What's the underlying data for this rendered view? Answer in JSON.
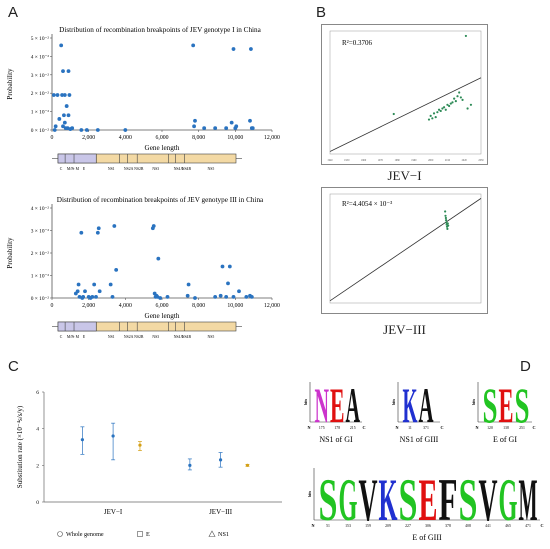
{
  "panels": {
    "A": "A",
    "B": "B",
    "C": "C",
    "D": "D"
  },
  "genome_segments": [
    "C",
    "M/Pr M",
    "E",
    "NS1",
    "NS2A NS2B",
    "NS3",
    "NS4A",
    "NS4B",
    "NS5"
  ],
  "chart_data": [
    {
      "id": "A1",
      "type": "scatter",
      "title": "Distribution of recombination breakpoints of JEV genotype I in China",
      "xlabel": "Gene length",
      "ylabel": "Probability",
      "xlim": [
        0,
        12000
      ],
      "ylim": [
        0,
        0.05
      ],
      "xticks": [
        0,
        2000,
        4000,
        6000,
        8000,
        10000,
        12000
      ],
      "xtick_labels": [
        "0",
        "2,000",
        "4,000",
        "6,000",
        "8,000",
        "10,000",
        "12,000"
      ],
      "yticks": [
        0,
        0.01,
        0.02,
        0.03,
        0.04,
        0.05
      ],
      "ytick_labels": [
        "0 × 10⁻²",
        "1 × 10⁻²",
        "2 × 10⁻²",
        "3 × 10⁻²",
        "4 × 10⁻²",
        "5 × 10⁻²"
      ],
      "color": "#2a73c0",
      "points": [
        [
          100,
          0.019
        ],
        [
          150,
          0
        ],
        [
          200,
          0.002
        ],
        [
          300,
          0.019
        ],
        [
          400,
          0.006
        ],
        [
          500,
          0.046
        ],
        [
          550,
          0.019
        ],
        [
          600,
          0.032
        ],
        [
          600,
          0.002
        ],
        [
          650,
          0.008
        ],
        [
          700,
          0.019
        ],
        [
          700,
          0.004
        ],
        [
          750,
          0.001
        ],
        [
          800,
          0.013
        ],
        [
          850,
          0.001
        ],
        [
          900,
          0.032
        ],
        [
          900,
          0.008
        ],
        [
          950,
          0.019
        ],
        [
          1000,
          0.0005
        ],
        [
          1100,
          0.001
        ],
        [
          1600,
          0
        ],
        [
          1900,
          0
        ],
        [
          2500,
          0
        ],
        [
          4000,
          0
        ],
        [
          7700,
          0.046
        ],
        [
          7750,
          0.002
        ],
        [
          7800,
          0.005
        ],
        [
          8300,
          0.001
        ],
        [
          8900,
          0.001
        ],
        [
          9500,
          0.001
        ],
        [
          9800,
          0.004
        ],
        [
          9900,
          0.044
        ],
        [
          10000,
          0.001
        ],
        [
          10050,
          0.002
        ],
        [
          10800,
          0.005
        ],
        [
          10850,
          0.044
        ],
        [
          10900,
          0.001
        ],
        [
          10950,
          0.001
        ]
      ]
    },
    {
      "id": "A2",
      "type": "scatter",
      "title": "Distribution of recombination breakpoints of JEV genotype III in China",
      "xlabel": "Gene length",
      "ylabel": "Probability",
      "xlim": [
        0,
        12000
      ],
      "ylim": [
        0,
        0.04
      ],
      "xticks": [
        0,
        2000,
        4000,
        6000,
        8000,
        10000,
        12000
      ],
      "xtick_labels": [
        "0",
        "2,000",
        "4,000",
        "6,000",
        "8,000",
        "10,000",
        "12,000"
      ],
      "yticks": [
        0,
        0.01,
        0.02,
        0.03,
        0.04
      ],
      "ytick_labels": [
        "0 × 10⁻²",
        "1 × 10⁻²",
        "2 × 10⁻²",
        "3 × 10⁻²",
        "4 × 10⁻²"
      ],
      "color": "#2a73c0",
      "points": [
        [
          1300,
          0.002
        ],
        [
          1400,
          0.003
        ],
        [
          1450,
          0.006
        ],
        [
          1500,
          0.0005
        ],
        [
          1600,
          0.029
        ],
        [
          1650,
          0
        ],
        [
          1700,
          0.0005
        ],
        [
          1800,
          0.003
        ],
        [
          2000,
          0.0005
        ],
        [
          2100,
          0
        ],
        [
          2200,
          0.0005
        ],
        [
          2300,
          0.006
        ],
        [
          2400,
          0.0005
        ],
        [
          2500,
          0.029
        ],
        [
          2550,
          0.031
        ],
        [
          2600,
          0.003
        ],
        [
          3200,
          0.006
        ],
        [
          3300,
          0.0005
        ],
        [
          3400,
          0.032
        ],
        [
          3500,
          0.0125
        ],
        [
          5500,
          0.031
        ],
        [
          5550,
          0.032
        ],
        [
          5600,
          0.002
        ],
        [
          5650,
          0.0005
        ],
        [
          5700,
          0.001
        ],
        [
          5750,
          0.0005
        ],
        [
          5800,
          0.0175
        ],
        [
          5900,
          0
        ],
        [
          6300,
          0.0005
        ],
        [
          7400,
          0.001
        ],
        [
          7450,
          0.006
        ],
        [
          7800,
          0
        ],
        [
          8900,
          0.0005
        ],
        [
          9200,
          0.001
        ],
        [
          9300,
          0.014
        ],
        [
          9500,
          0.0005
        ],
        [
          9600,
          0.0065
        ],
        [
          9700,
          0.014
        ],
        [
          9900,
          0.0005
        ],
        [
          10200,
          0.003
        ],
        [
          10600,
          0.0005
        ],
        [
          10800,
          0.001
        ],
        [
          10900,
          0.0005
        ]
      ]
    },
    {
      "id": "B1",
      "type": "scatter",
      "annotation": "R²=0.3706",
      "caption": "JEV−I",
      "xlim": [
        1940,
        2030
      ],
      "ylim": [
        0,
        1
      ],
      "xtick_labels": [
        "1940",
        "1950",
        "1960",
        "1970",
        "1980",
        "1990",
        "2000",
        "2010",
        "2020",
        "2030"
      ],
      "regression_line": [
        [
          1940,
          0.02
        ],
        [
          2030,
          0.62
        ]
      ],
      "color": "#2e8b57",
      "points": [
        [
          1978,
          0.325
        ],
        [
          1999,
          0.28
        ],
        [
          2000,
          0.31
        ],
        [
          2001,
          0.29
        ],
        [
          2002,
          0.33
        ],
        [
          2003,
          0.3
        ],
        [
          2004,
          0.34
        ],
        [
          2005,
          0.36
        ],
        [
          2006,
          0.35
        ],
        [
          2007,
          0.37
        ],
        [
          2008,
          0.38
        ],
        [
          2009,
          0.36
        ],
        [
          2010,
          0.4
        ],
        [
          2011,
          0.39
        ],
        [
          2012,
          0.41
        ],
        [
          2013,
          0.42
        ],
        [
          2014,
          0.45
        ],
        [
          2015,
          0.43
        ],
        [
          2016,
          0.47
        ],
        [
          2017,
          0.5
        ],
        [
          2018,
          0.46
        ],
        [
          2019,
          0.44
        ],
        [
          2021,
          0.96
        ],
        [
          2022,
          0.37
        ],
        [
          2024,
          0.4
        ]
      ]
    },
    {
      "id": "B2",
      "type": "scatter",
      "annotation": "R²=4.4054 × 10⁻³",
      "caption": "JEV−III",
      "xlim": [
        1950,
        2030
      ],
      "ylim": [
        0,
        1
      ],
      "regression_line": [
        [
          1950,
          0.02
        ],
        [
          2030,
          0.96
        ]
      ],
      "color": "#2e8b57",
      "points": [
        [
          2011,
          0.84
        ],
        [
          2011.2,
          0.8
        ],
        [
          2011.4,
          0.78
        ],
        [
          2011.5,
          0.76
        ],
        [
          2011.7,
          0.74
        ],
        [
          2011.8,
          0.72
        ],
        [
          2012,
          0.7
        ],
        [
          2012.2,
          0.68
        ],
        [
          2012.4,
          0.73
        ],
        [
          2012.6,
          0.71
        ]
      ]
    },
    {
      "id": "C",
      "type": "errorbar",
      "ylabel": "Substitution rate (×10⁻⁴s/s/y)",
      "ylim": [
        0,
        6
      ],
      "yticks": [
        0,
        2,
        4,
        6
      ],
      "categories": [
        "JEV−I",
        "JEV−III"
      ],
      "series": [
        {
          "name": "Whole genome",
          "marker": "circle",
          "color": "#2a73c0",
          "values": [
            {
              "group": "JEV−I",
              "x": 0.8,
              "mean": 3.4,
              "low": 2.6,
              "high": 4.1
            },
            {
              "group": "JEV−III",
              "x": 2.2,
              "mean": 2.0,
              "low": 1.75,
              "high": 2.35
            }
          ]
        },
        {
          "name": "E",
          "marker": "square",
          "color": "#2a73c0",
          "values": [
            {
              "group": "JEV−I",
              "x": 1.2,
              "mean": 3.6,
              "low": 2.3,
              "high": 4.3
            },
            {
              "group": "JEV−III",
              "x": 2.6,
              "mean": 2.3,
              "low": 1.9,
              "high": 2.7
            }
          ]
        },
        {
          "name": "NS1",
          "marker": "triangle",
          "color": "#d4a017",
          "values": [
            {
              "group": "JEV−I",
              "x": 1.55,
              "mean": 3.1,
              "low": 2.8,
              "high": 3.3
            },
            {
              "group": "JEV−III",
              "x": 2.95,
              "mean": 2.0,
              "low": 1.95,
              "high": 2.05
            }
          ]
        }
      ]
    }
  ],
  "B": {
    "caption1": "JEV−I",
    "caption2": "JEV−III",
    "r2_1": "R²=0.3706",
    "r2_2": "R²=4.4054 × 10⁻³"
  },
  "logos": [
    {
      "label": "NS1 of GI",
      "letters": [
        "N",
        "E",
        "A"
      ],
      "ticks": [
        "175",
        "178",
        "215"
      ]
    },
    {
      "label": "NS1 of GIII",
      "letters": [
        "K",
        "A"
      ],
      "ticks": [
        "11",
        "371"
      ]
    },
    {
      "label": "E of GI",
      "letters": [
        "S",
        "E",
        "S"
      ],
      "ticks": [
        "120",
        "138",
        "251"
      ]
    },
    {
      "label": "E of GIII",
      "letters": [
        "S",
        "G",
        "V",
        "K",
        "S",
        "E",
        "F",
        "S",
        "V",
        "G",
        "M"
      ],
      "ticks": [
        "51",
        "153",
        "159",
        "209",
        "227",
        "306",
        "378",
        "408",
        "441",
        "465",
        "471"
      ]
    }
  ],
  "logo_axis": {
    "bits": "bits",
    "n": "N",
    "c": "C"
  },
  "logo_colors": {
    "S": "#22c422",
    "G": "#22c422",
    "N": "#cc33cc",
    "Q": "#cc33cc",
    "K": "#2030d0",
    "R": "#2030d0",
    "E": "#e01010",
    "D": "#e01010",
    "A": "#111111",
    "V": "#111111",
    "F": "#111111",
    "M": "#111111",
    "P": "#111111",
    "T": "#22c422"
  }
}
